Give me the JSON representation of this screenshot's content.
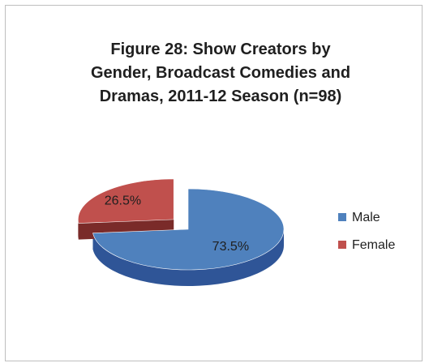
{
  "chart_data": {
    "type": "pie",
    "style": "3d-exploded",
    "title_lines": [
      "Figure 28:  Show Creators by",
      "Gender, Broadcast Comedies and",
      "Dramas, 2011-12 Season (n=98)"
    ],
    "slices": [
      {
        "name": "Male",
        "value": 73.5,
        "label": "73.5%",
        "color": "#4f81bd",
        "dark": "#2f5597"
      },
      {
        "name": "Female",
        "value": 26.5,
        "label": "26.5%",
        "color": "#c0504d",
        "dark": "#7a2b29"
      }
    ],
    "legend_position": "right"
  }
}
